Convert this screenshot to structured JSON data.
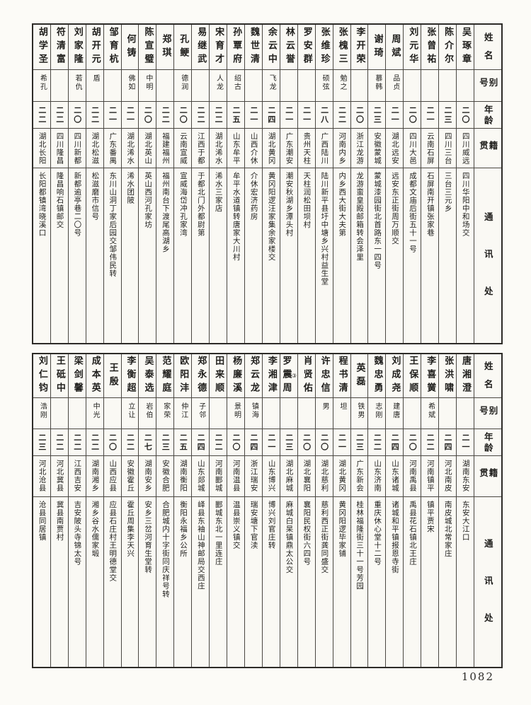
{
  "page_number": "1082",
  "colors": {
    "paper": "#fcfbf7",
    "ink": "#1f1e1c",
    "grid_line": "#4a4742"
  },
  "headers": {
    "name": "姓名",
    "alias": "别号",
    "age": "年龄",
    "native_place": "籍贯",
    "address": "通讯处"
  },
  "top_table": {
    "entries": [
      {
        "name": "吴琢章",
        "alias": "",
        "age": "二〇",
        "native_place": "四川威远",
        "address": "四川华阳中和场交"
      },
      {
        "name": "陈介尔",
        "alias": "",
        "age": "二三",
        "native_place": "四川三台",
        "address": "三台三元乡"
      },
      {
        "name": "张曾祐",
        "alias": "",
        "age": "二一",
        "native_place": "云南石屏",
        "address": "石屏南开镇张家巷"
      },
      {
        "name": "刘元华",
        "alias": "",
        "age": "二〇",
        "native_place": "四川大邑",
        "address": "成都文庙后街五十一号"
      },
      {
        "name": "周斌",
        "alias": "品贞",
        "age": "二一",
        "native_place": "湖北远安",
        "address": "远安东正街周万顺交"
      },
      {
        "name": "谢琦",
        "alias": "慕韩",
        "age": "二三",
        "native_place": "安徽蒙城",
        "address": "蒙城漆园街北首路东一四号"
      },
      {
        "name": "李开荣",
        "alias": "",
        "age": "二〇",
        "native_place": "浙江龙游",
        "address": "龙游蛮皇殿邮箱转会泽里"
      },
      {
        "name": "张槐三",
        "alias": "勉之",
        "age": "二二",
        "native_place": "河南内乡",
        "address": "内乡西大街大夫第"
      },
      {
        "name": "张维珍",
        "alias": "硕弦",
        "age": "二八",
        "native_place": "广西陆川",
        "address": "陆川新平县圩中塘乡兴村益生堂"
      },
      {
        "name": "罗安群",
        "alias": "",
        "age": "二一",
        "native_place": "贵州天柱",
        "address": "天柱润松田坝村"
      },
      {
        "name": "林云誉",
        "alias": "",
        "age": "二一",
        "native_place": "广东潮安",
        "address": "潮安秋湖乡潭头村"
      },
      {
        "name": "余云中",
        "alias": "飞龙",
        "age": "二四",
        "native_place": "湖北黄冈",
        "address": "黄冈阳逻汪家集余家楼交"
      },
      {
        "name": "魏世清",
        "alias": "",
        "age": "二一",
        "native_place": "山西介休",
        "address": "介休宏济药房"
      },
      {
        "name": "孙覃府",
        "alias": "绍古",
        "age": "二五",
        "native_place": "山东牟平",
        "address": "牟平水道镇转唐家大川村"
      },
      {
        "name": "宋育才",
        "alias": "人龙",
        "age": "二二",
        "native_place": "湖北浠水",
        "address": "浠水三家店"
      },
      {
        "name": "易继武",
        "alias": "",
        "age": "二二",
        "native_place": "江西于都",
        "address": "于都北门外都尉第"
      },
      {
        "name": "孔鲠",
        "alias": "德润",
        "age": "二〇",
        "native_place": "云南宣威",
        "address": "宣威海岱冲孔家湾"
      },
      {
        "name": "郑琪",
        "alias": "",
        "age": "二二",
        "native_place": "福建福州",
        "address": "福州南台下渡尾高湖乡"
      },
      {
        "name": "陈宣璧",
        "alias": "中明",
        "age": "二〇",
        "native_place": "湖北英山",
        "address": "英山西河孔家坊"
      },
      {
        "name": "何铸",
        "alias": "佛如",
        "age": "二一",
        "native_place": "湖北浠水",
        "address": "浠水团陂"
      },
      {
        "name": "邹育杭",
        "alias": "",
        "age": "二一",
        "native_place": "广东番禺",
        "address": "东川山洞丁家后园交邹伟民转"
      },
      {
        "name": "胡开元",
        "alias": "盾",
        "age": "二二",
        "native_place": "湖北松滋",
        "address": "松滋磨市信号"
      },
      {
        "name": "刘家隆",
        "alias": "若仇",
        "age": "二〇",
        "native_place": "四川新都",
        "address": "新都逾亭巷二〇号"
      },
      {
        "name": "符清富",
        "alias": "",
        "age": "二二",
        "native_place": "四川隆昌",
        "address": "隆昌响石镇邮交"
      },
      {
        "name": "胡学圣",
        "alias": "希孔",
        "age": "二二",
        "native_place": "湖北长阳",
        "address": "长阳都镇湾晓溪口"
      }
    ]
  },
  "bottom_table": {
    "entries": [
      {
        "name": "唐湘澄",
        "alias": "",
        "age": "二一",
        "native_place": "湖南东安",
        "address": "东安大江口"
      },
      {
        "name": "张洪啸",
        "alias": "",
        "age": "二四",
        "native_place": "河北南皮",
        "address": "南皮城北常家庄"
      },
      {
        "name": "李喜黉",
        "alias": "希斌",
        "age": "二二",
        "native_place": "河南镇平",
        "address": "镇平贾宋"
      },
      {
        "name": "王保顺",
        "alias": "",
        "age": "二〇",
        "native_place": "河南禹县",
        "address": "禹县花石镇北王庄"
      },
      {
        "name": "刘成尧",
        "alias": "建唐",
        "age": "二四",
        "native_place": "山东诸城",
        "address": "诸城和平镇报恩寺街"
      },
      {
        "name": "魏忠勇",
        "alias": "志刚",
        "age": "二二",
        "native_place": "山东济南",
        "address": "重庆休心堂十二号"
      },
      {
        "name": "英磊",
        "alias": "铁男",
        "age": "二三",
        "native_place": "广东新会",
        "address": "桂林福隆街三十一号芳园"
      },
      {
        "name": "程书清",
        "alias": "坦",
        "age": "二一",
        "native_place": "湖北黄冈",
        "address": "黄冈阳逻毕家铺"
      },
      {
        "name": "许忠信",
        "alias": "男",
        "age": "二〇",
        "native_place": "湖北慈利",
        "address": "慈利西正街龚同盛交"
      },
      {
        "name": "肖贤佑",
        "alias": "",
        "age": "二〇",
        "native_place": "湖北襄阳",
        "address": "襄阳民权街六四号"
      },
      {
        "name": "罗震周",
        "alias": "",
        "age": "二三",
        "native_place": "湖北麻城",
        "address": "麻城白杲镇鼎太公交",
        "note": "③"
      },
      {
        "name": "李湘津",
        "alias": "",
        "age": "二一",
        "native_place": "山东博兴",
        "address": "博兴刘官庄转"
      },
      {
        "name": "郑云龙",
        "alias": "镇海",
        "age": "二四",
        "native_place": "浙江瑞安",
        "address": "瑞安塘下官渎"
      },
      {
        "name": "杨廉溪",
        "alias": "景明",
        "age": "二〇",
        "native_place": "河南温县",
        "address": "温县崇义镇交"
      },
      {
        "name": "田来顺",
        "alias": "",
        "age": "二二",
        "native_place": "河南郾城",
        "address": "郾城东北一里连庄"
      },
      {
        "name": "郑永德",
        "alias": "子邻",
        "age": "二四",
        "native_place": "山东郯城",
        "address": "峄县东袖山神邮局交西庄"
      },
      {
        "name": "欧阳沣",
        "alias": "仲江",
        "age": "二五",
        "native_place": "湖南衡阳",
        "address": "衡阳永福乡公所"
      },
      {
        "name": "范耀庭",
        "alias": "家荣",
        "age": "二三",
        "native_place": "安徽合肥",
        "address": "合肥城内十字街同庆祥号转"
      },
      {
        "name": "吴泰选",
        "alias": "岩伯",
        "age": "二七",
        "native_place": "湖南安乡",
        "address": "安乡三岔河育生堂转"
      },
      {
        "name": "李衡超",
        "alias": "立让",
        "age": "二二",
        "native_place": "安徽霍丘",
        "address": "霍丘周集李天兴"
      },
      {
        "name": "王殷",
        "alias": "",
        "age": "二〇",
        "native_place": "山西应县",
        "address": "应县石庄村王明德堂交"
      },
      {
        "name": "成本英",
        "alias": "中光",
        "age": "二二",
        "native_place": "湖南湘乡",
        "address": "湘乡谷水儒家塅"
      },
      {
        "name": "梁剑馨",
        "alias": "",
        "age": "二二",
        "native_place": "江西吉安",
        "address": "吉安陂头寺锦太号"
      },
      {
        "name": "王砥中",
        "alias": "",
        "age": "二二",
        "native_place": "河北冀县",
        "address": "冀县南贾村"
      },
      {
        "name": "刘仁钧",
        "alias": "浩刚",
        "age": "二三",
        "native_place": "河北沧县",
        "address": "沧县同居镇"
      }
    ]
  }
}
